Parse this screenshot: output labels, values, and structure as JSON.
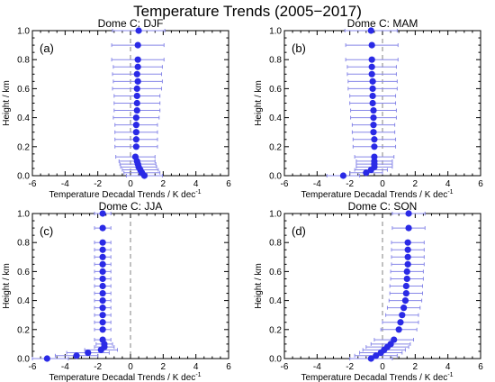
{
  "figure_title": "Temperature Trends (2005−2017)",
  "colors": {
    "marker": "#2a2ae6",
    "error_bar": "#8888e8",
    "axis": "#000000",
    "zero_line": "#808080"
  },
  "chart_data": [
    {
      "type": "scatter",
      "title": "Dome C: DJF",
      "panel_label": "(a)",
      "xlabel": "Temperature Decadal Trends / K dec",
      "xlabel_superscript": "-1",
      "ylabel": "Height / km",
      "xlim": [
        -6,
        6
      ],
      "ylim": [
        0,
        1.0
      ],
      "xticks": [
        "-6",
        "-4",
        "-2",
        "0",
        "2",
        "4",
        "6"
      ],
      "yticks": [
        "0.0",
        "0.2",
        "0.4",
        "0.6",
        "0.8",
        "1.0"
      ],
      "zero_line": true,
      "heights": [
        0.0,
        0.02,
        0.04,
        0.06,
        0.08,
        0.1,
        0.13,
        0.2,
        0.25,
        0.3,
        0.35,
        0.4,
        0.45,
        0.5,
        0.55,
        0.6,
        0.65,
        0.7,
        0.75,
        0.8,
        0.9,
        1.0
      ],
      "trends": [
        0.85,
        0.7,
        0.6,
        0.5,
        0.45,
        0.4,
        0.3,
        0.35,
        0.35,
        0.35,
        0.35,
        0.35,
        0.4,
        0.4,
        0.4,
        0.4,
        0.45,
        0.4,
        0.45,
        0.45,
        0.45,
        0.5
      ],
      "errors": [
        1.1,
        1.1,
        1.1,
        1.1,
        1.1,
        1.1,
        1.2,
        1.3,
        1.3,
        1.3,
        1.3,
        1.4,
        1.4,
        1.4,
        1.4,
        1.5,
        1.5,
        1.5,
        1.5,
        1.6,
        1.6,
        1.6
      ]
    },
    {
      "type": "scatter",
      "title": "Dome C: MAM",
      "panel_label": "(b)",
      "xlabel": "Temperature Decadal Trends / K dec",
      "xlabel_superscript": "-1",
      "ylabel": "Height / km",
      "xlim": [
        -6,
        6
      ],
      "ylim": [
        0,
        1.0
      ],
      "xticks": [
        "-6",
        "-4",
        "-2",
        "0",
        "2",
        "4",
        "6"
      ],
      "yticks": [
        "0.0",
        "0.2",
        "0.4",
        "0.6",
        "0.8",
        "1.0"
      ],
      "zero_line": true,
      "heights": [
        0.0,
        0.02,
        0.04,
        0.06,
        0.08,
        0.1,
        0.13,
        0.2,
        0.25,
        0.3,
        0.35,
        0.4,
        0.45,
        0.5,
        0.55,
        0.6,
        0.65,
        0.7,
        0.75,
        0.8,
        0.9,
        1.0
      ],
      "trends": [
        -2.4,
        -1.0,
        -0.7,
        -0.5,
        -0.5,
        -0.5,
        -0.5,
        -0.5,
        -0.5,
        -0.55,
        -0.55,
        -0.55,
        -0.55,
        -0.6,
        -0.6,
        -0.6,
        -0.6,
        -0.65,
        -0.65,
        -0.65,
        -0.65,
        -0.7
      ],
      "errors": [
        1.0,
        1.0,
        1.0,
        1.1,
        1.1,
        1.1,
        1.2,
        1.3,
        1.3,
        1.3,
        1.3,
        1.4,
        1.4,
        1.4,
        1.4,
        1.5,
        1.5,
        1.5,
        1.5,
        1.6,
        1.6,
        1.6
      ]
    },
    {
      "type": "scatter",
      "title": "Dome C: JJA",
      "panel_label": "(c)",
      "xlabel": "Temperature Decadal Trends / K dec",
      "xlabel_superscript": "-1",
      "ylabel": "Height / km",
      "xlim": [
        -6,
        6
      ],
      "ylim": [
        0,
        1.0
      ],
      "xticks": [
        "-6",
        "-4",
        "-2",
        "0",
        "2",
        "4",
        "6"
      ],
      "yticks": [
        "0.0",
        "0.2",
        "0.4",
        "0.6",
        "0.8",
        "1.0"
      ],
      "zero_line": true,
      "heights": [
        0.0,
        0.02,
        0.04,
        0.06,
        0.08,
        0.1,
        0.13,
        0.2,
        0.25,
        0.3,
        0.35,
        0.4,
        0.45,
        0.5,
        0.55,
        0.6,
        0.65,
        0.7,
        0.75,
        0.8,
        0.9,
        1.0
      ],
      "trends": [
        -5.1,
        -3.3,
        -2.6,
        -1.8,
        -1.6,
        -1.6,
        -1.7,
        -1.7,
        -1.7,
        -1.7,
        -1.7,
        -1.7,
        -1.7,
        -1.7,
        -1.7,
        -1.7,
        -1.7,
        -1.7,
        -1.7,
        -1.7,
        -1.7,
        -1.7
      ],
      "errors": [
        1.3,
        1.3,
        1.3,
        1.0,
        0.6,
        0.5,
        0.5,
        0.5,
        0.5,
        0.5,
        0.5,
        0.5,
        0.5,
        0.5,
        0.5,
        0.5,
        0.5,
        0.5,
        0.5,
        0.5,
        0.5,
        0.5
      ]
    },
    {
      "type": "scatter",
      "title": "Dome C: SON",
      "panel_label": "(d)",
      "xlabel": "Temperature Decadal Trends / K dec",
      "xlabel_superscript": "-1",
      "ylabel": "Height / km",
      "xlim": [
        -6,
        6
      ],
      "ylim": [
        0,
        1.0
      ],
      "xticks": [
        "-6",
        "-4",
        "-2",
        "0",
        "2",
        "4",
        "6"
      ],
      "yticks": [
        "0.0",
        "0.2",
        "0.4",
        "0.6",
        "0.8",
        "1.0"
      ],
      "zero_line": true,
      "heights": [
        0.0,
        0.02,
        0.04,
        0.06,
        0.08,
        0.1,
        0.13,
        0.2,
        0.25,
        0.3,
        0.35,
        0.4,
        0.45,
        0.5,
        0.55,
        0.6,
        0.65,
        0.7,
        0.75,
        0.8,
        0.9,
        1.0
      ],
      "trends": [
        -0.7,
        -0.4,
        -0.1,
        0.1,
        0.3,
        0.5,
        0.7,
        1.0,
        1.1,
        1.2,
        1.3,
        1.4,
        1.45,
        1.45,
        1.5,
        1.5,
        1.55,
        1.55,
        1.55,
        1.55,
        1.6,
        1.6
      ],
      "errors": [
        1.3,
        1.3,
        1.3,
        1.3,
        1.3,
        1.2,
        1.2,
        1.1,
        1.1,
        1.0,
        1.0,
        1.0,
        1.0,
        1.0,
        1.0,
        1.0,
        1.0,
        1.0,
        1.0,
        1.0,
        1.0,
        1.0
      ]
    }
  ]
}
